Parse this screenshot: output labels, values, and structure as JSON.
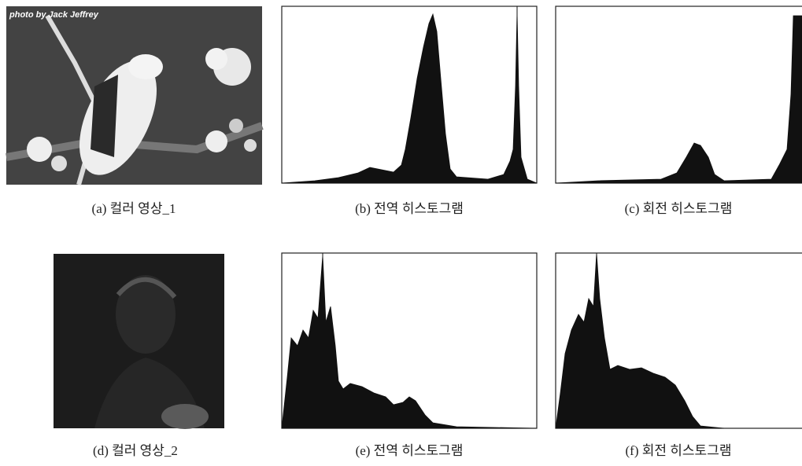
{
  "figure": {
    "photo_credit": "photo by Jack Jeffrey",
    "panels": [
      {
        "caption": "(a) 컬러 영상_1"
      },
      {
        "caption": "(b) 전역 히스토그램"
      },
      {
        "caption": "(c) 회전 히스토그램"
      },
      {
        "caption": "(d) 컬러 영상_2"
      },
      {
        "caption": "(e) 전역 히스토그램"
      },
      {
        "caption": "(f) 회전 히스토그램"
      }
    ]
  }
}
